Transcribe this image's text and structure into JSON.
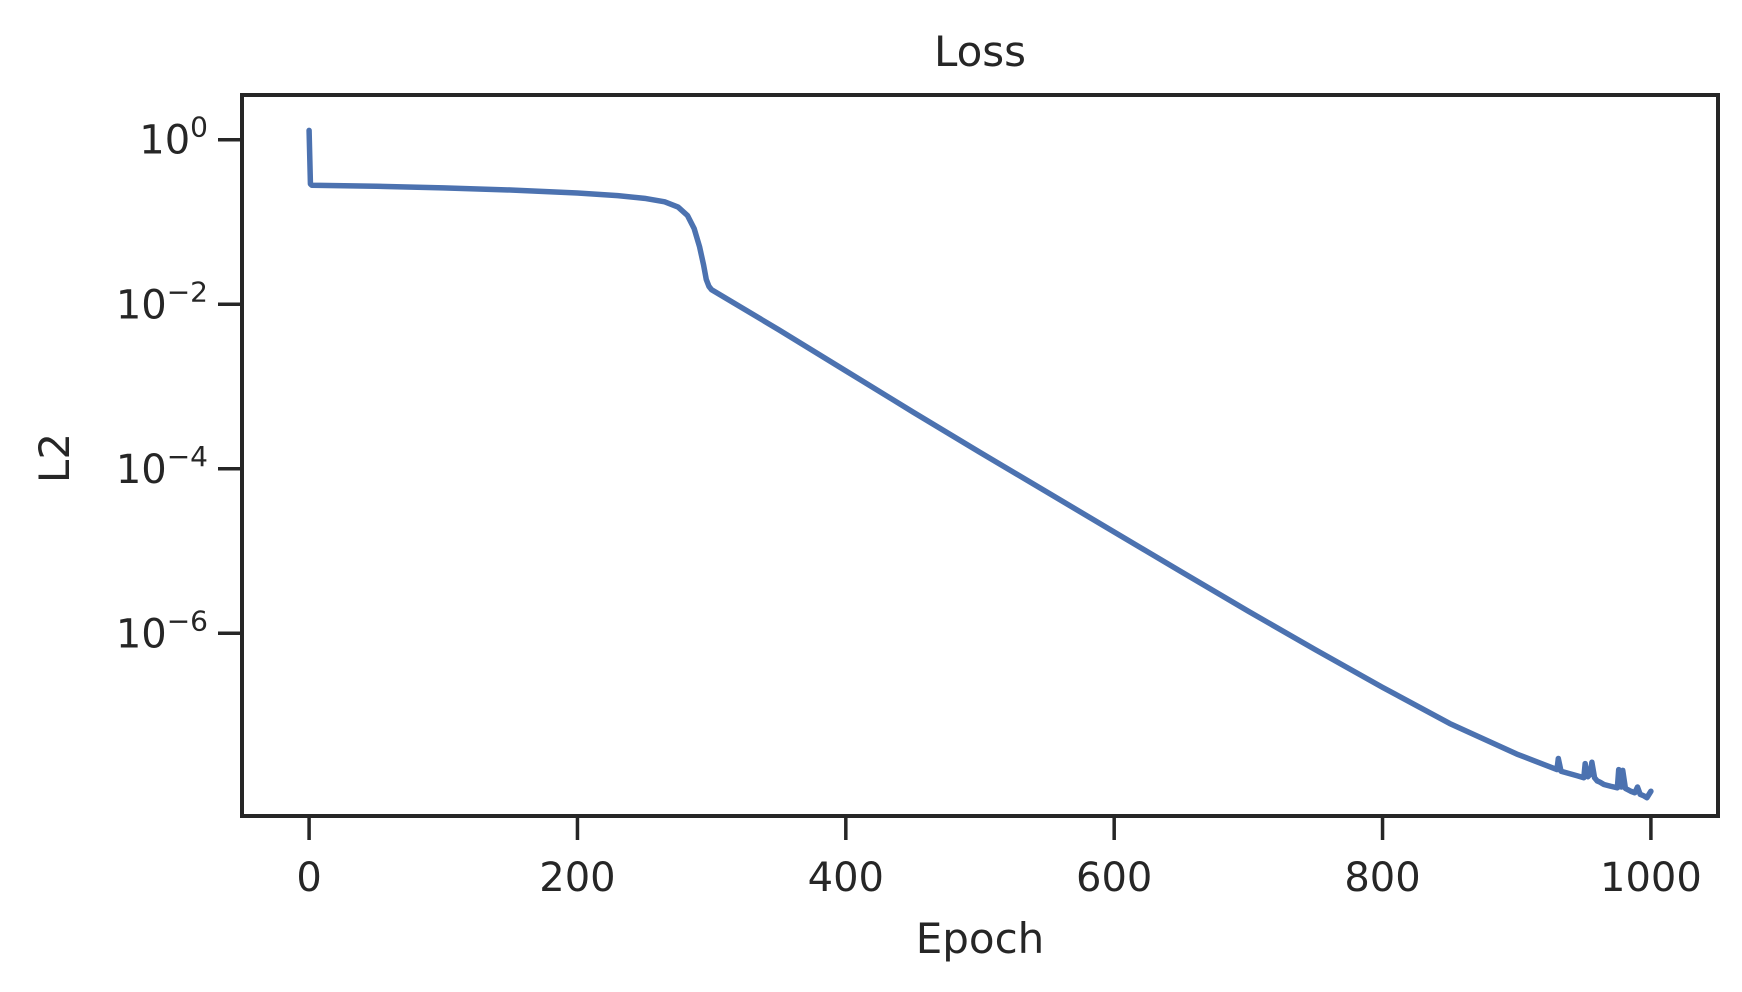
{
  "chart_data": {
    "type": "line",
    "title": "Loss",
    "xlabel": "Epoch",
    "ylabel": "L2",
    "xlim": [
      -50,
      1050
    ],
    "ylim": [
      6e-09,
      3.5
    ],
    "yscale": "log",
    "grid": false,
    "legend": "none",
    "color": "#4c72b0",
    "x_ticks": [
      {
        "value": 0,
        "label": "0"
      },
      {
        "value": 200,
        "label": "200"
      },
      {
        "value": 400,
        "label": "400"
      },
      {
        "value": 600,
        "label": "600"
      },
      {
        "value": 800,
        "label": "800"
      },
      {
        "value": 1000,
        "label": "1000"
      }
    ],
    "y_ticks": [
      {
        "value": 1,
        "base": "10",
        "exponent": "0"
      },
      {
        "value": 0.01,
        "base": "10",
        "exponent": "−2"
      },
      {
        "value": 0.0001,
        "base": "10",
        "exponent": "−4"
      },
      {
        "value": 1e-06,
        "base": "10",
        "exponent": "−6"
      }
    ],
    "series": [
      {
        "x": [
          0,
          1,
          2,
          50,
          100,
          150,
          200,
          230,
          250,
          265,
          275,
          282,
          287,
          291,
          294,
          296,
          298,
          300,
          350,
          400,
          450,
          500,
          550,
          600,
          650,
          700,
          750,
          800,
          850,
          900,
          930,
          931,
          933,
          945,
          950,
          951,
          953,
          955,
          956,
          958,
          960,
          962,
          965,
          970,
          975,
          976,
          978,
          979,
          981,
          983,
          985,
          988,
          990,
          992,
          995,
          997,
          1000
        ],
        "y": [
          1.3,
          0.29,
          0.28,
          0.272,
          0.26,
          0.245,
          0.225,
          0.209,
          0.194,
          0.176,
          0.152,
          0.12,
          0.083,
          0.05,
          0.03,
          0.02,
          0.0165,
          0.015,
          0.0049,
          0.00155,
          0.00049,
          0.000158,
          5.2e-05,
          1.7e-05,
          5.6e-06,
          1.85e-06,
          6.3e-07,
          2.2e-07,
          8e-08,
          3.4e-08,
          2.2e-08,
          3e-08,
          2.1e-08,
          1.85e-08,
          1.75e-08,
          2.6e-08,
          1.8e-08,
          1.95e-08,
          2.7e-08,
          1.75e-08,
          1.6e-08,
          1.55e-08,
          1.45e-08,
          1.38e-08,
          1.32e-08,
          2.2e-08,
          1.35e-08,
          2.15e-08,
          1.3e-08,
          1.25e-08,
          1.2e-08,
          1.15e-08,
          1.35e-08,
          1.1e-08,
          1.05e-08,
          1e-08,
          1.2e-08
        ]
      }
    ]
  }
}
